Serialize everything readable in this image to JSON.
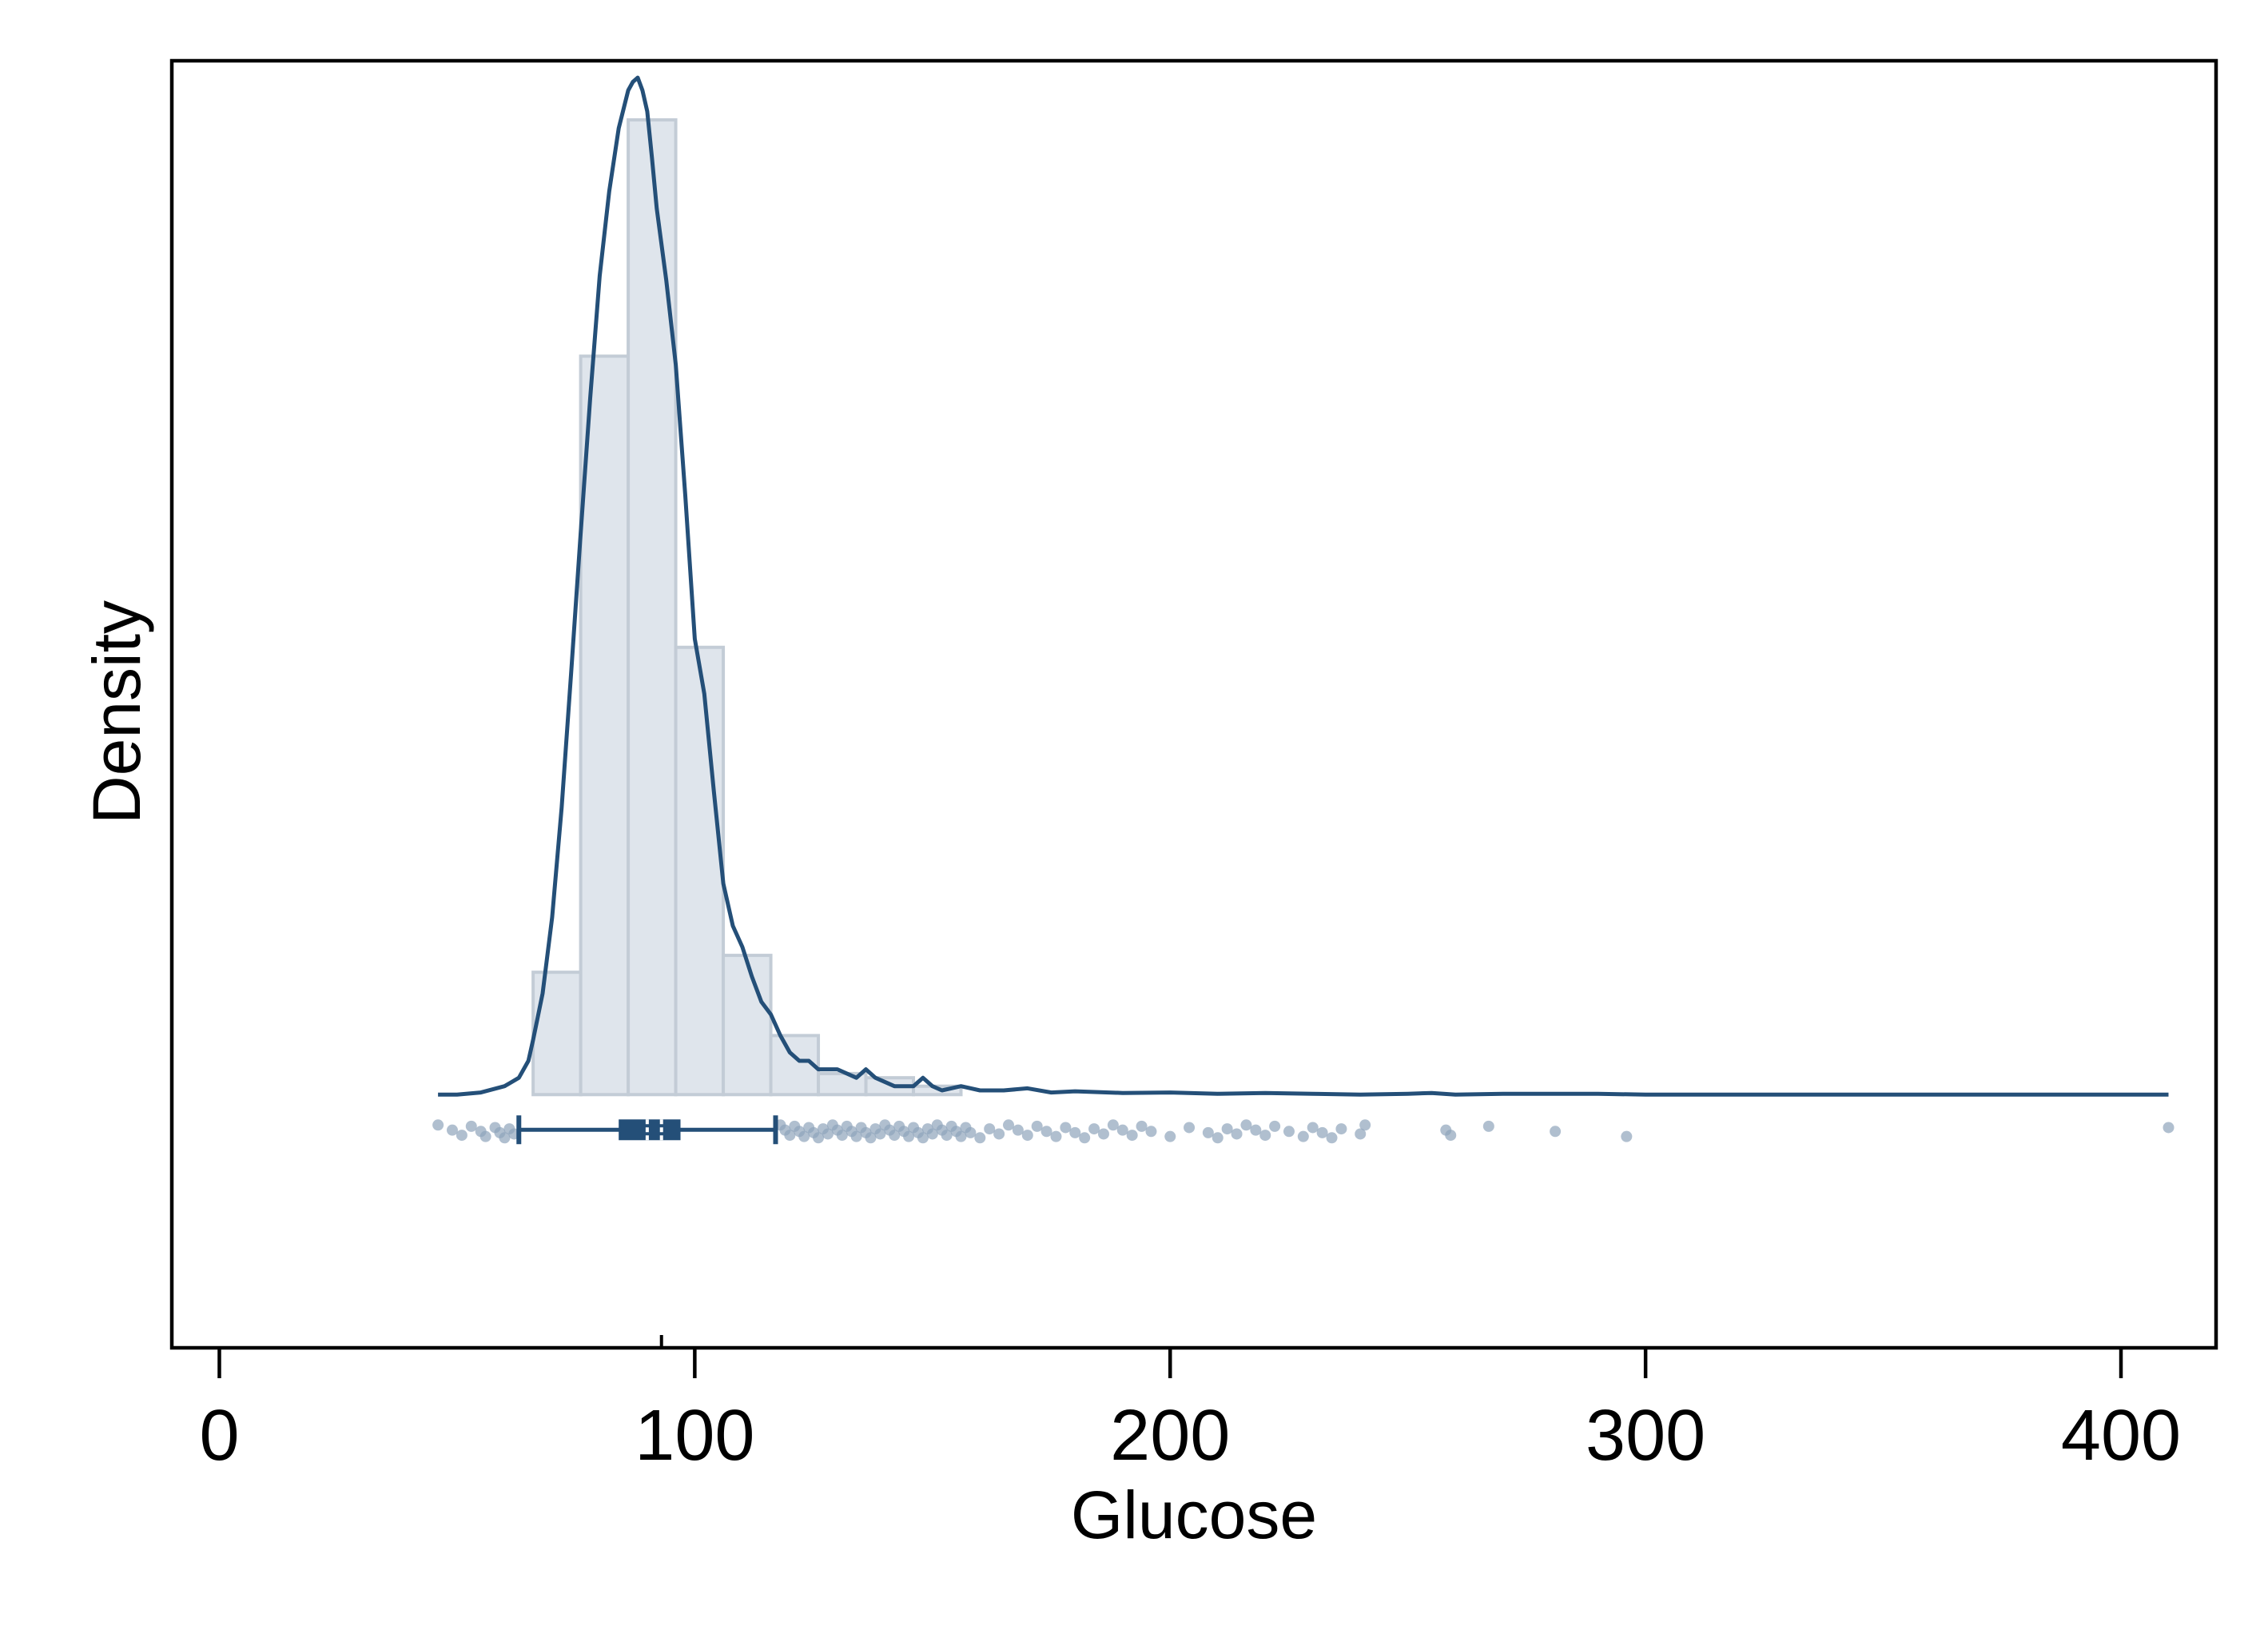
{
  "colors": {
    "line": "#244f78",
    "bar_fill": "#dfe5ec",
    "bar_stroke": "#c3ccd6",
    "point": "#8ea4bb",
    "frame": "#000000"
  },
  "chart_data": {
    "type": "bar",
    "title": "",
    "xlabel": "Glucose",
    "ylabel": "Density",
    "xlim": [
      -10,
      420
    ],
    "ylim": [
      -0.006,
      0.0245
    ],
    "x_ticks": [
      0,
      100,
      200,
      300,
      400
    ],
    "x_tick_labels": [
      "0",
      "100",
      "200",
      "300",
      "400"
    ],
    "y_ticks_shown": false,
    "grid": false,
    "histogram": {
      "bin_edges": [
        66,
        76,
        86,
        96,
        106,
        116,
        126,
        136,
        146,
        156
      ],
      "values": [
        0.0029,
        0.0175,
        0.0231,
        0.0106,
        0.0033,
        0.0014,
        0.0005,
        0.0004,
        0.0002
      ]
    },
    "density": {
      "x": [
        46,
        50,
        55,
        60,
        63,
        65,
        66,
        68,
        70,
        72,
        74,
        76,
        78,
        80,
        82,
        84,
        86,
        87,
        88,
        89,
        90,
        91,
        92,
        94,
        96,
        98,
        100,
        102,
        104,
        106,
        108,
        110,
        112,
        114,
        116,
        118,
        120,
        122,
        124,
        126,
        130,
        134,
        136,
        138,
        140,
        142,
        146,
        148,
        150,
        152,
        156,
        160,
        165,
        170,
        175,
        180,
        190,
        200,
        210,
        220,
        230,
        240,
        250,
        255,
        260,
        270,
        280,
        290,
        300,
        320,
        350,
        380,
        410
      ],
      "y": [
        0.0,
        0.0,
        5e-05,
        0.0002,
        0.0004,
        0.0008,
        0.0013,
        0.0024,
        0.0042,
        0.0068,
        0.01,
        0.0133,
        0.0165,
        0.0194,
        0.0214,
        0.0229,
        0.0238,
        0.024,
        0.0241,
        0.0238,
        0.0233,
        0.0222,
        0.021,
        0.0193,
        0.0173,
        0.0142,
        0.0108,
        0.0095,
        0.0072,
        0.005,
        0.004,
        0.0035,
        0.0028,
        0.0022,
        0.0019,
        0.0014,
        0.001,
        0.0008,
        0.0008,
        0.0006,
        0.0006,
        0.0004,
        0.0006,
        0.0004,
        0.0003,
        0.0002,
        0.0002,
        0.0004,
        0.0002,
        0.0001,
        0.0002,
        0.0001,
        0.0001,
        0.00015,
        5e-05,
        8e-05,
        4e-05,
        5e-05,
        2e-05,
        4e-05,
        2e-05,
        0.0,
        2e-05,
        4e-05,
        0.0,
        2e-05,
        2e-05,
        2e-05,
        0.0,
        0.0,
        0.0,
        0.0,
        0.0
      ]
    },
    "boxplot": {
      "whisker_low": 63,
      "q1": 84,
      "median": 90,
      "mean": 93,
      "q3": 97,
      "whisker_high": 117,
      "mean_tick": 93
    },
    "points": [
      46,
      49,
      51,
      53,
      55,
      56,
      58,
      59,
      60,
      61,
      62,
      118,
      119,
      120,
      121,
      122,
      123,
      124,
      125,
      126,
      127,
      128,
      129,
      130,
      131,
      132,
      133,
      134,
      135,
      136,
      137,
      138,
      139,
      140,
      141,
      142,
      143,
      144,
      145,
      146,
      147,
      148,
      149,
      150,
      151,
      152,
      153,
      154,
      155,
      156,
      157,
      158,
      160,
      162,
      164,
      166,
      168,
      170,
      172,
      174,
      176,
      178,
      180,
      182,
      184,
      186,
      188,
      190,
      192,
      194,
      196,
      200,
      204,
      208,
      210,
      212,
      214,
      216,
      218,
      220,
      222,
      225,
      228,
      230,
      232,
      234,
      236,
      240,
      241,
      258,
      259,
      267,
      281,
      296,
      410
    ]
  }
}
